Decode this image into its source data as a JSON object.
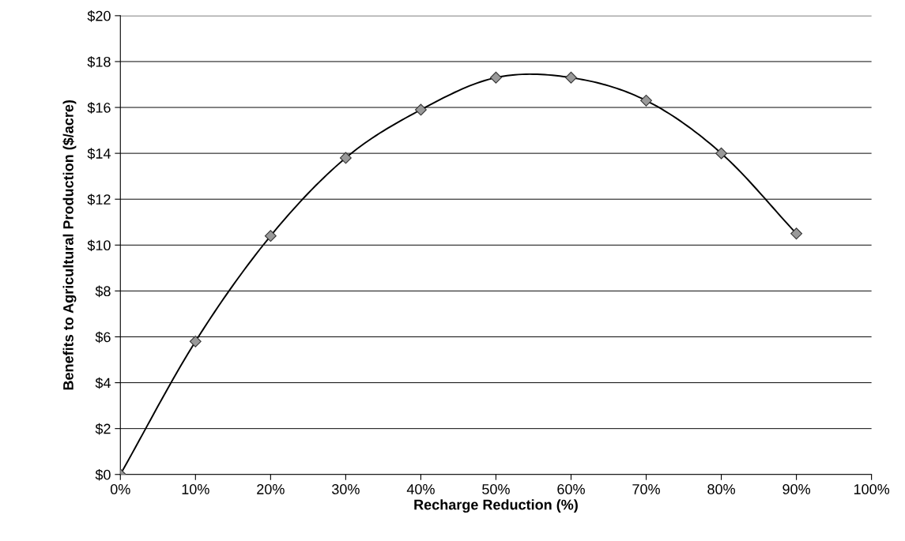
{
  "chart_data": {
    "type": "line",
    "xlabel": "Recharge Reduction (%)",
    "ylabel": "Benefits to Agricultural Production ($/acre)",
    "x": [
      0,
      10,
      20,
      30,
      40,
      50,
      60,
      70,
      80,
      90
    ],
    "series": [
      {
        "color": "#000000",
        "values": [
          0,
          5.8,
          10.4,
          13.8,
          15.9,
          17.3,
          17.3,
          16.3,
          14.0,
          10.5
        ]
      }
    ],
    "marker": "diamond",
    "line_style": "solid",
    "grid": "y",
    "xlim": [
      0,
      100
    ],
    "xticks": [
      {
        "value": 0,
        "label": "0%"
      },
      {
        "value": 10,
        "label": "10%"
      },
      {
        "value": 20,
        "label": "20%"
      },
      {
        "value": 30,
        "label": "30%"
      },
      {
        "value": 40,
        "label": "40%"
      },
      {
        "value": 50,
        "label": "50%"
      },
      {
        "value": 60,
        "label": "60%"
      },
      {
        "value": 70,
        "label": "70%"
      },
      {
        "value": 80,
        "label": "80%"
      },
      {
        "value": 90,
        "label": "90%"
      },
      {
        "value": 100,
        "label": "100%"
      }
    ],
    "ylim": [
      0,
      20
    ],
    "yticks": [
      {
        "value": 0,
        "label": "$0"
      },
      {
        "value": 2,
        "label": "$2"
      },
      {
        "value": 4,
        "label": "$4"
      },
      {
        "value": 6,
        "label": "$6"
      },
      {
        "value": 8,
        "label": "$8"
      },
      {
        "value": 10,
        "label": "$10"
      },
      {
        "value": 12,
        "label": "$12"
      },
      {
        "value": 14,
        "label": "$14"
      },
      {
        "value": 16,
        "label": "$16"
      },
      {
        "value": 18,
        "label": "$18"
      },
      {
        "value": 20,
        "label": "$20"
      }
    ]
  }
}
